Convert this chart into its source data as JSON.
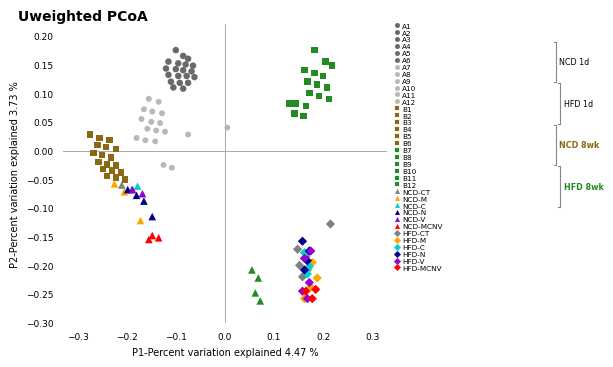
{
  "title": "Uweighted PCoA",
  "xlabel": "P1-Percent variation explained 4.47 %",
  "ylabel": "P2-Percent variation explained 3.73 %",
  "xlim": [
    -0.33,
    0.33
  ],
  "ylim": [
    -0.3,
    0.22
  ],
  "groups": {
    "NCD_1d": {
      "marker": "o",
      "color": "#696969",
      "size": 22,
      "points": [
        [
          -0.1,
          0.175
        ],
        [
          -0.085,
          0.165
        ],
        [
          -0.075,
          0.16
        ],
        [
          -0.115,
          0.155
        ],
        [
          -0.095,
          0.152
        ],
        [
          -0.08,
          0.15
        ],
        [
          -0.065,
          0.148
        ],
        [
          -0.12,
          0.143
        ],
        [
          -0.1,
          0.142
        ],
        [
          -0.085,
          0.14
        ],
        [
          -0.068,
          0.138
        ],
        [
          -0.115,
          0.132
        ],
        [
          -0.095,
          0.13
        ],
        [
          -0.078,
          0.13
        ],
        [
          -0.062,
          0.128
        ],
        [
          -0.11,
          0.12
        ],
        [
          -0.092,
          0.118
        ],
        [
          -0.075,
          0.118
        ],
        [
          -0.105,
          0.11
        ],
        [
          -0.085,
          0.108
        ]
      ]
    },
    "HFD_1d": {
      "marker": "o",
      "color": "#b8b8b8",
      "size": 18,
      "points": [
        [
          -0.155,
          0.09
        ],
        [
          -0.135,
          0.085
        ],
        [
          -0.165,
          0.072
        ],
        [
          -0.148,
          0.068
        ],
        [
          -0.128,
          0.065
        ],
        [
          -0.17,
          0.055
        ],
        [
          -0.15,
          0.05
        ],
        [
          -0.132,
          0.048
        ],
        [
          -0.158,
          0.038
        ],
        [
          -0.14,
          0.035
        ],
        [
          -0.122,
          0.033
        ],
        [
          -0.18,
          0.022
        ],
        [
          -0.162,
          0.018
        ],
        [
          -0.142,
          0.016
        ],
        [
          -0.125,
          -0.025
        ],
        [
          -0.108,
          -0.03
        ],
        [
          -0.075,
          0.028
        ],
        [
          0.005,
          0.04
        ]
      ]
    },
    "NCD_8wk": {
      "marker": "s",
      "color": "#8B6914",
      "size": 22,
      "points": [
        [
          -0.275,
          0.028
        ],
        [
          -0.255,
          0.022
        ],
        [
          -0.235,
          0.018
        ],
        [
          -0.26,
          0.01
        ],
        [
          -0.242,
          0.006
        ],
        [
          -0.222,
          0.003
        ],
        [
          -0.268,
          -0.004
        ],
        [
          -0.25,
          -0.008
        ],
        [
          -0.232,
          -0.012
        ],
        [
          -0.258,
          -0.02
        ],
        [
          -0.24,
          -0.024
        ],
        [
          -0.222,
          -0.026
        ],
        [
          -0.248,
          -0.032
        ],
        [
          -0.23,
          -0.035
        ],
        [
          -0.212,
          -0.038
        ],
        [
          -0.24,
          -0.044
        ],
        [
          -0.222,
          -0.047
        ],
        [
          -0.204,
          -0.05
        ]
      ]
    },
    "HFD_8wk": {
      "marker": "s",
      "color": "#228B22",
      "size": 22,
      "points": [
        [
          0.182,
          0.175
        ],
        [
          0.205,
          0.155
        ],
        [
          0.218,
          0.148
        ],
        [
          0.162,
          0.14
        ],
        [
          0.182,
          0.135
        ],
        [
          0.2,
          0.13
        ],
        [
          0.168,
          0.12
        ],
        [
          0.188,
          0.115
        ],
        [
          0.208,
          0.11
        ],
        [
          0.172,
          0.1
        ],
        [
          0.192,
          0.095
        ],
        [
          0.212,
          0.09
        ],
        [
          0.145,
          0.082
        ],
        [
          0.165,
          0.078
        ],
        [
          0.142,
          0.065
        ],
        [
          0.16,
          0.06
        ],
        [
          0.132,
          0.082
        ]
      ]
    },
    "NCD_CT": {
      "marker": "^",
      "color": "#808080",
      "size": 30,
      "points": [
        [
          -0.21,
          -0.06
        ],
        [
          -0.19,
          -0.068
        ]
      ]
    },
    "NCD_M": {
      "marker": "^",
      "color": "#FFA500",
      "size": 30,
      "points": [
        [
          -0.225,
          -0.058
        ],
        [
          -0.205,
          -0.072
        ],
        [
          -0.172,
          -0.122
        ]
      ]
    },
    "NCD_C": {
      "marker": "^",
      "color": "#00CED1",
      "size": 30,
      "points": [
        [
          -0.178,
          -0.062
        ]
      ]
    },
    "NCD_N": {
      "marker": "^",
      "color": "#00008B",
      "size": 30,
      "points": [
        [
          -0.198,
          -0.068
        ],
        [
          -0.18,
          -0.078
        ],
        [
          -0.165,
          -0.088
        ],
        [
          -0.148,
          -0.115
        ]
      ]
    },
    "NCD_V": {
      "marker": "^",
      "color": "#9400D3",
      "size": 30,
      "points": [
        [
          -0.188,
          -0.068
        ],
        [
          -0.168,
          -0.075
        ]
      ]
    },
    "NCD_MCNV": {
      "marker": "^",
      "color": "#FF0000",
      "size": 30,
      "points": [
        [
          -0.148,
          -0.148
        ],
        [
          -0.135,
          -0.152
        ],
        [
          -0.155,
          -0.155
        ]
      ]
    },
    "HFD_CT": {
      "marker": "D",
      "color": "#808080",
      "size": 22,
      "points": [
        [
          0.215,
          -0.128
        ],
        [
          0.148,
          -0.172
        ],
        [
          0.165,
          -0.185
        ],
        [
          0.152,
          -0.2
        ],
        [
          0.168,
          -0.208
        ],
        [
          0.158,
          -0.22
        ]
      ]
    },
    "HFD_M": {
      "marker": "D",
      "color": "#FFA500",
      "size": 22,
      "points": [
        [
          0.178,
          -0.195
        ],
        [
          0.188,
          -0.222
        ],
        [
          0.175,
          -0.238
        ],
        [
          0.162,
          -0.258
        ]
      ]
    },
    "HFD_C": {
      "marker": "D",
      "color": "#00CED1",
      "size": 22,
      "points": [
        [
          0.162,
          -0.178
        ],
        [
          0.172,
          -0.202
        ],
        [
          0.168,
          -0.215
        ]
      ]
    },
    "HFD_N": {
      "marker": "D",
      "color": "#00008B",
      "size": 22,
      "points": [
        [
          0.158,
          -0.158
        ],
        [
          0.172,
          -0.175
        ],
        [
          0.168,
          -0.192
        ],
        [
          0.162,
          -0.208
        ]
      ]
    },
    "HFD_V": {
      "marker": "D",
      "color": "#9400D3",
      "size": 22,
      "points": [
        [
          0.175,
          -0.175
        ],
        [
          0.162,
          -0.188
        ],
        [
          0.172,
          -0.23
        ],
        [
          0.158,
          -0.245
        ],
        [
          0.168,
          -0.258
        ]
      ]
    },
    "HFD_MCNV": {
      "marker": "D",
      "color": "#FF0000",
      "size": 22,
      "points": [
        [
          0.185,
          -0.242
        ],
        [
          0.178,
          -0.258
        ],
        [
          0.165,
          -0.245
        ]
      ]
    },
    "green_triangle": {
      "marker": "^",
      "color": "#228B22",
      "size": 30,
      "points": [
        [
          0.055,
          -0.208
        ],
        [
          0.068,
          -0.222
        ],
        [
          0.062,
          -0.248
        ],
        [
          0.072,
          -0.262
        ]
      ]
    }
  },
  "legend_items": [
    {
      "label": "A1",
      "marker": "o",
      "color": "#696969"
    },
    {
      "label": "A2",
      "marker": "o",
      "color": "#696969"
    },
    {
      "label": "A3",
      "marker": "o",
      "color": "#696969"
    },
    {
      "label": "A4",
      "marker": "o",
      "color": "#696969"
    },
    {
      "label": "A5",
      "marker": "o",
      "color": "#696969"
    },
    {
      "label": "A6",
      "marker": "o",
      "color": "#696969"
    },
    {
      "label": "A7",
      "marker": "o",
      "color": "#b8b8b8"
    },
    {
      "label": "A8",
      "marker": "o",
      "color": "#b8b8b8"
    },
    {
      "label": "A9",
      "marker": "o",
      "color": "#b8b8b8"
    },
    {
      "label": "A10",
      "marker": "o",
      "color": "#b8b8b8"
    },
    {
      "label": "A11",
      "marker": "o",
      "color": "#b8b8b8"
    },
    {
      "label": "A12",
      "marker": "o",
      "color": "#b8b8b8"
    },
    {
      "label": "B1",
      "marker": "s",
      "color": "#8B6914"
    },
    {
      "label": "B2",
      "marker": "s",
      "color": "#8B6914"
    },
    {
      "label": "B3",
      "marker": "s",
      "color": "#8B6914"
    },
    {
      "label": "B4",
      "marker": "s",
      "color": "#8B6914"
    },
    {
      "label": "B5",
      "marker": "s",
      "color": "#8B6914"
    },
    {
      "label": "B6",
      "marker": "s",
      "color": "#8B6914"
    },
    {
      "label": "B7",
      "marker": "s",
      "color": "#228B22"
    },
    {
      "label": "B8",
      "marker": "s",
      "color": "#228B22"
    },
    {
      "label": "B9",
      "marker": "s",
      "color": "#228B22"
    },
    {
      "label": "B10",
      "marker": "s",
      "color": "#228B22"
    },
    {
      "label": "B11",
      "marker": "s",
      "color": "#228B22"
    },
    {
      "label": "B12",
      "marker": "s",
      "color": "#228B22"
    },
    {
      "label": "NCD-CT",
      "marker": "^",
      "color": "#808080"
    },
    {
      "label": "NCD-M",
      "marker": "^",
      "color": "#FFA500"
    },
    {
      "label": "NCD-C",
      "marker": "^",
      "color": "#00CED1"
    },
    {
      "label": "NCD-N",
      "marker": "^",
      "color": "#00008B"
    },
    {
      "label": "NCD-V",
      "marker": "^",
      "color": "#9400D3"
    },
    {
      "label": "NCD-MCNV",
      "marker": "^",
      "color": "#FF0000"
    },
    {
      "label": "HFD-CT",
      "marker": "D",
      "color": "#808080"
    },
    {
      "label": "HFD-M",
      "marker": "D",
      "color": "#FFA500"
    },
    {
      "label": "HFD-C",
      "marker": "D",
      "color": "#00CED1"
    },
    {
      "label": "HFD-N",
      "marker": "D",
      "color": "#00008B"
    },
    {
      "label": "HFD-V",
      "marker": "D",
      "color": "#9400D3"
    },
    {
      "label": "HFD-MCNV",
      "marker": "D",
      "color": "#FF0000"
    }
  ],
  "bracket_groups": [
    {
      "label": "NCD 1d",
      "start": 0,
      "end": 5,
      "color": "black",
      "bold": false
    },
    {
      "label": "HFD 1d",
      "start": 6,
      "end": 11,
      "color": "black",
      "bold": false
    },
    {
      "label": "NCD 8wk",
      "start": 12,
      "end": 17,
      "color": "#8B6914",
      "bold": true
    },
    {
      "label": "HFD 8wk",
      "start": 18,
      "end": 23,
      "color": "#228B22",
      "bold": true
    }
  ]
}
